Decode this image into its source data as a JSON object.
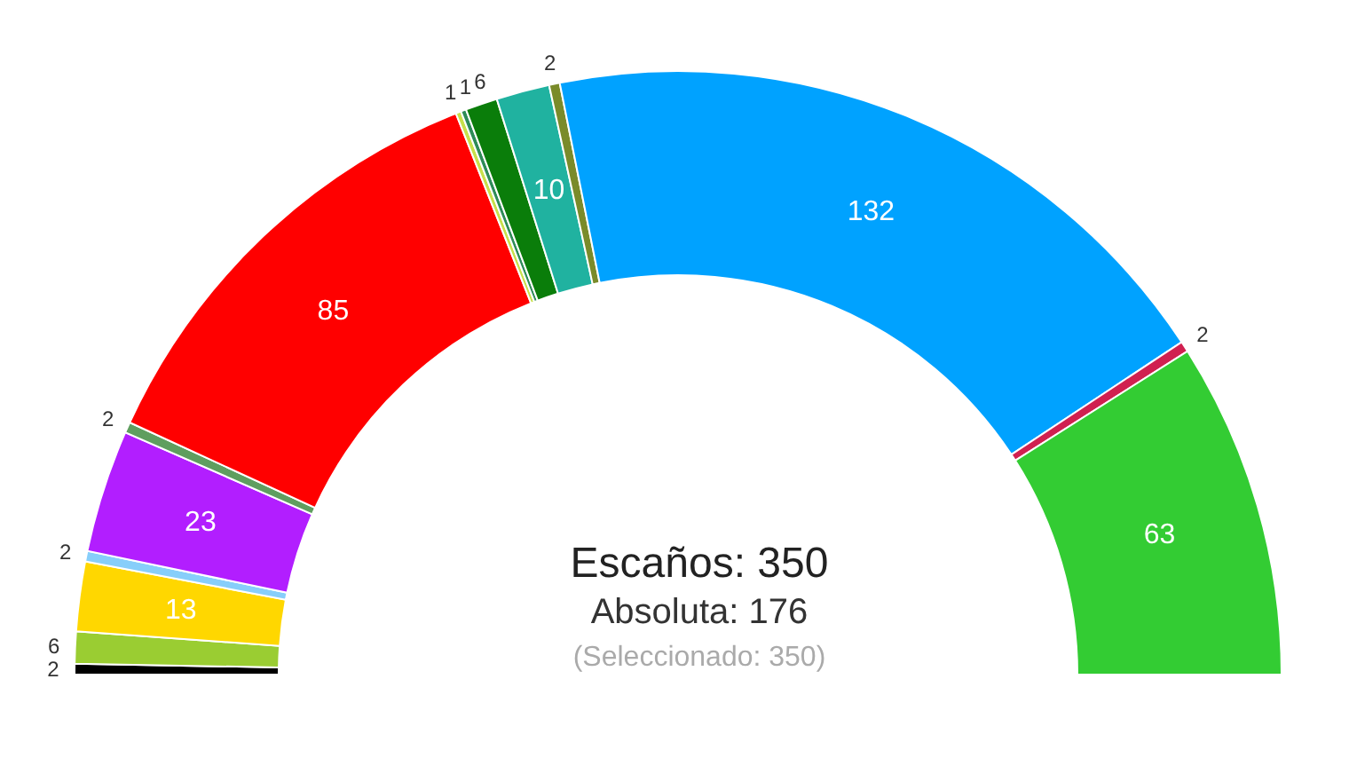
{
  "chart_data": {
    "type": "donut",
    "categories": [
      null,
      null,
      null,
      null,
      null,
      null,
      null,
      null,
      null,
      null,
      null,
      null,
      null,
      null,
      null
    ],
    "values": [
      2,
      6,
      13,
      2,
      23,
      2,
      85,
      1,
      1,
      6,
      10,
      2,
      132,
      2,
      63
    ],
    "colors": [
      "#000000",
      "#9acd32",
      "#ffd700",
      "#87cefa",
      "#b21eff",
      "#5f9e5f",
      "#ff0000",
      "#c8e04a",
      "#2e8b57",
      "#0a7d0a",
      "#20b2a0",
      "#7a8b2a",
      "#00a2ff",
      "#d02050",
      "#33cc33"
    ],
    "data_labels": true,
    "annotations": [
      "Escaños: 350",
      "Absoluta: 176",
      "(Seleccionado: 350)"
    ]
  }
}
